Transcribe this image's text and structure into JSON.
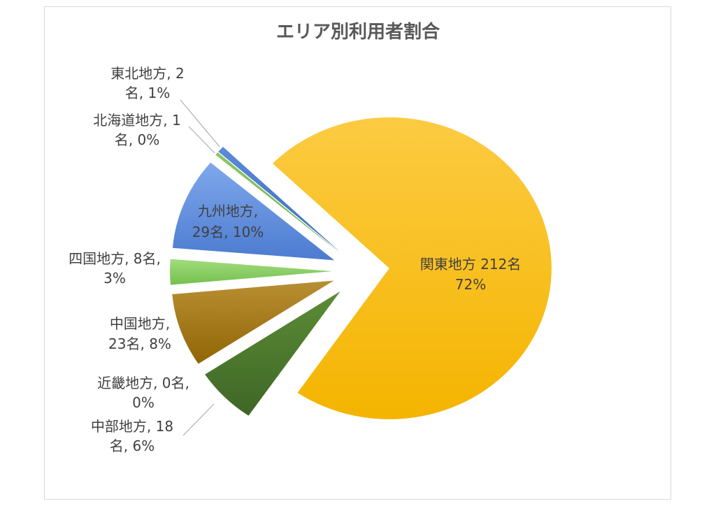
{
  "chart_data": {
    "type": "pie",
    "title": "エリア別利用者割合",
    "categories": [
      "北海道地方",
      "東北地方",
      "関東地方",
      "中部地方",
      "近畿地方",
      "中国地方",
      "四国地方",
      "九州地方"
    ],
    "values": [
      1,
      2,
      212,
      18,
      0,
      23,
      8,
      29
    ],
    "percentages": [
      0,
      1,
      72,
      6,
      0,
      8,
      3,
      10
    ],
    "exploded": true,
    "data_labels": [
      [
        "北海道地方, 1",
        "名, 0%"
      ],
      [
        "東北地方, 2",
        "名, 1%"
      ],
      [
        "関東地方 212名",
        "72%"
      ],
      [
        "中部地方, 18",
        "名, 6%"
      ],
      [
        "近畿地方, 0名,",
        "0%"
      ],
      [
        "中国地方,",
        "23名, 8%"
      ],
      [
        "四国地方, 8名,",
        "3%"
      ],
      [
        "九州地方,",
        "29名, 10%"
      ]
    ],
    "colors": [
      [
        "#8CC866",
        "#6EAD45"
      ],
      [
        "#5A8AD8",
        "#3E6CC0"
      ],
      [
        "#FCCB42",
        "#F4B400"
      ],
      [
        "#5C8C36",
        "#3E6626"
      ],
      [
        "#BDBDBD",
        "#9A9A9A"
      ],
      [
        "#B98F33",
        "#8F6505"
      ],
      [
        "#A2DC7E",
        "#74C04E"
      ],
      [
        "#7FA8EB",
        "#4C7BD0"
      ]
    ]
  }
}
